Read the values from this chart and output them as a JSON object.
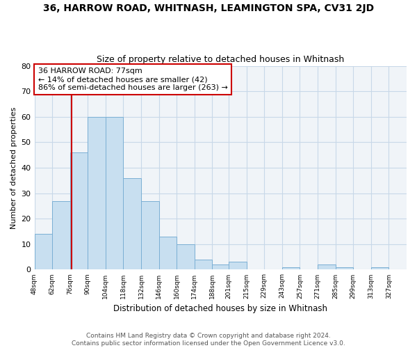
{
  "title": "36, HARROW ROAD, WHITNASH, LEAMINGTON SPA, CV31 2JD",
  "subtitle": "Size of property relative to detached houses in Whitnash",
  "xlabel": "Distribution of detached houses by size in Whitnash",
  "ylabel": "Number of detached properties",
  "bin_labels": [
    "48sqm",
    "62sqm",
    "76sqm",
    "90sqm",
    "104sqm",
    "118sqm",
    "132sqm",
    "146sqm",
    "160sqm",
    "174sqm",
    "188sqm",
    "201sqm",
    "215sqm",
    "229sqm",
    "243sqm",
    "257sqm",
    "271sqm",
    "285sqm",
    "299sqm",
    "313sqm",
    "327sqm"
  ],
  "bin_edges": [
    48,
    62,
    76,
    90,
    104,
    118,
    132,
    146,
    160,
    174,
    188,
    201,
    215,
    229,
    243,
    257,
    271,
    285,
    299,
    313,
    327,
    341
  ],
  "bar_heights": [
    14,
    27,
    46,
    60,
    60,
    36,
    27,
    13,
    10,
    4,
    2,
    3,
    0,
    0,
    1,
    0,
    2,
    1,
    0,
    1,
    0
  ],
  "bar_color": "#c8dff0",
  "bar_edgecolor": "#7aafd4",
  "vline_x": 77,
  "vline_color": "#cc0000",
  "annotation_line1": "36 HARROW ROAD: 77sqm",
  "annotation_line2": "← 14% of detached houses are smaller (42)",
  "annotation_line3": "86% of semi-detached houses are larger (263) →",
  "annotation_box_edgecolor": "#cc0000",
  "annotation_box_facecolor": "#ffffff",
  "ylim": [
    0,
    80
  ],
  "yticks": [
    0,
    10,
    20,
    30,
    40,
    50,
    60,
    70,
    80
  ],
  "grid_color": "#c8d8e8",
  "footer_text": "Contains HM Land Registry data © Crown copyright and database right 2024.\nContains public sector information licensed under the Open Government Licence v3.0.",
  "title_fontsize": 10,
  "subtitle_fontsize": 9,
  "xlabel_fontsize": 8.5,
  "ylabel_fontsize": 8,
  "annotation_fontsize": 8,
  "footer_fontsize": 6.5
}
